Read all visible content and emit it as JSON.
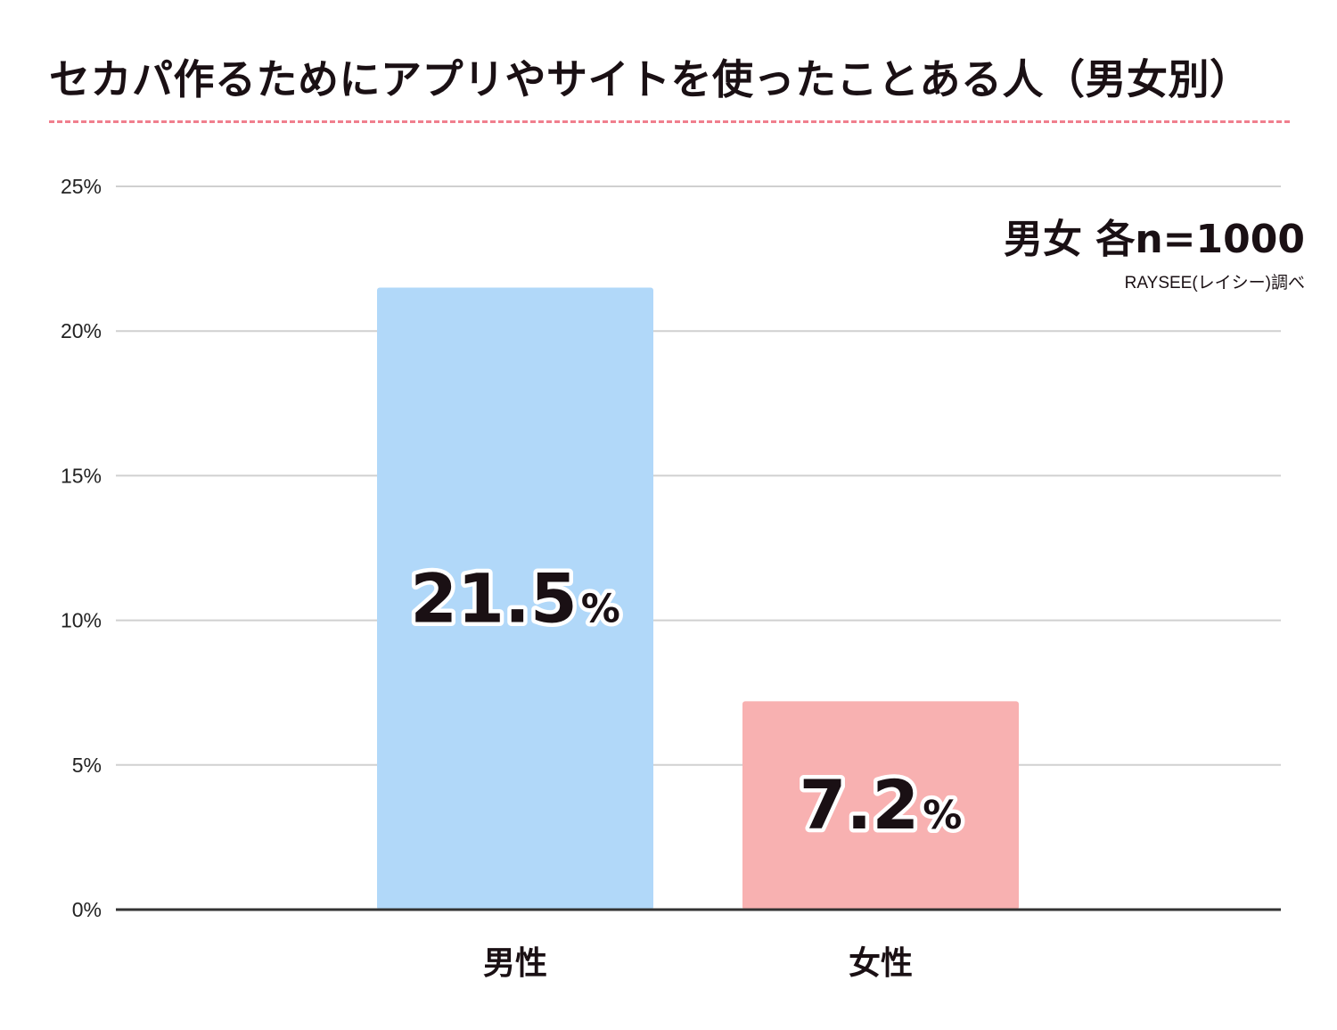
{
  "chart_data": {
    "type": "bar",
    "title": "セカパ作るためにアプリやサイトを使ったことある人（男女別）",
    "sample_note": "男女 各n=1000",
    "source": "RAYSEE(レイシー)調べ",
    "categories": [
      "男性",
      "女性"
    ],
    "values": [
      21.5,
      7.2
    ],
    "value_labels": [
      "21.5",
      "7.2"
    ],
    "value_suffix": "%",
    "colors": [
      "#b1d8f9",
      "#f8b1b1"
    ],
    "ylim": [
      0,
      25
    ],
    "yticks": [
      0,
      5,
      10,
      15,
      20,
      25
    ],
    "ytick_labels": [
      "0%",
      "5%",
      "10%",
      "15%",
      "20%",
      "25%"
    ],
    "grid": true,
    "xlabel": "",
    "ylabel": ""
  },
  "colors": {
    "title_rule": "#f07f8e",
    "grid": "#d0d0d0",
    "axis": "#333333",
    "text": "#1a1014"
  }
}
